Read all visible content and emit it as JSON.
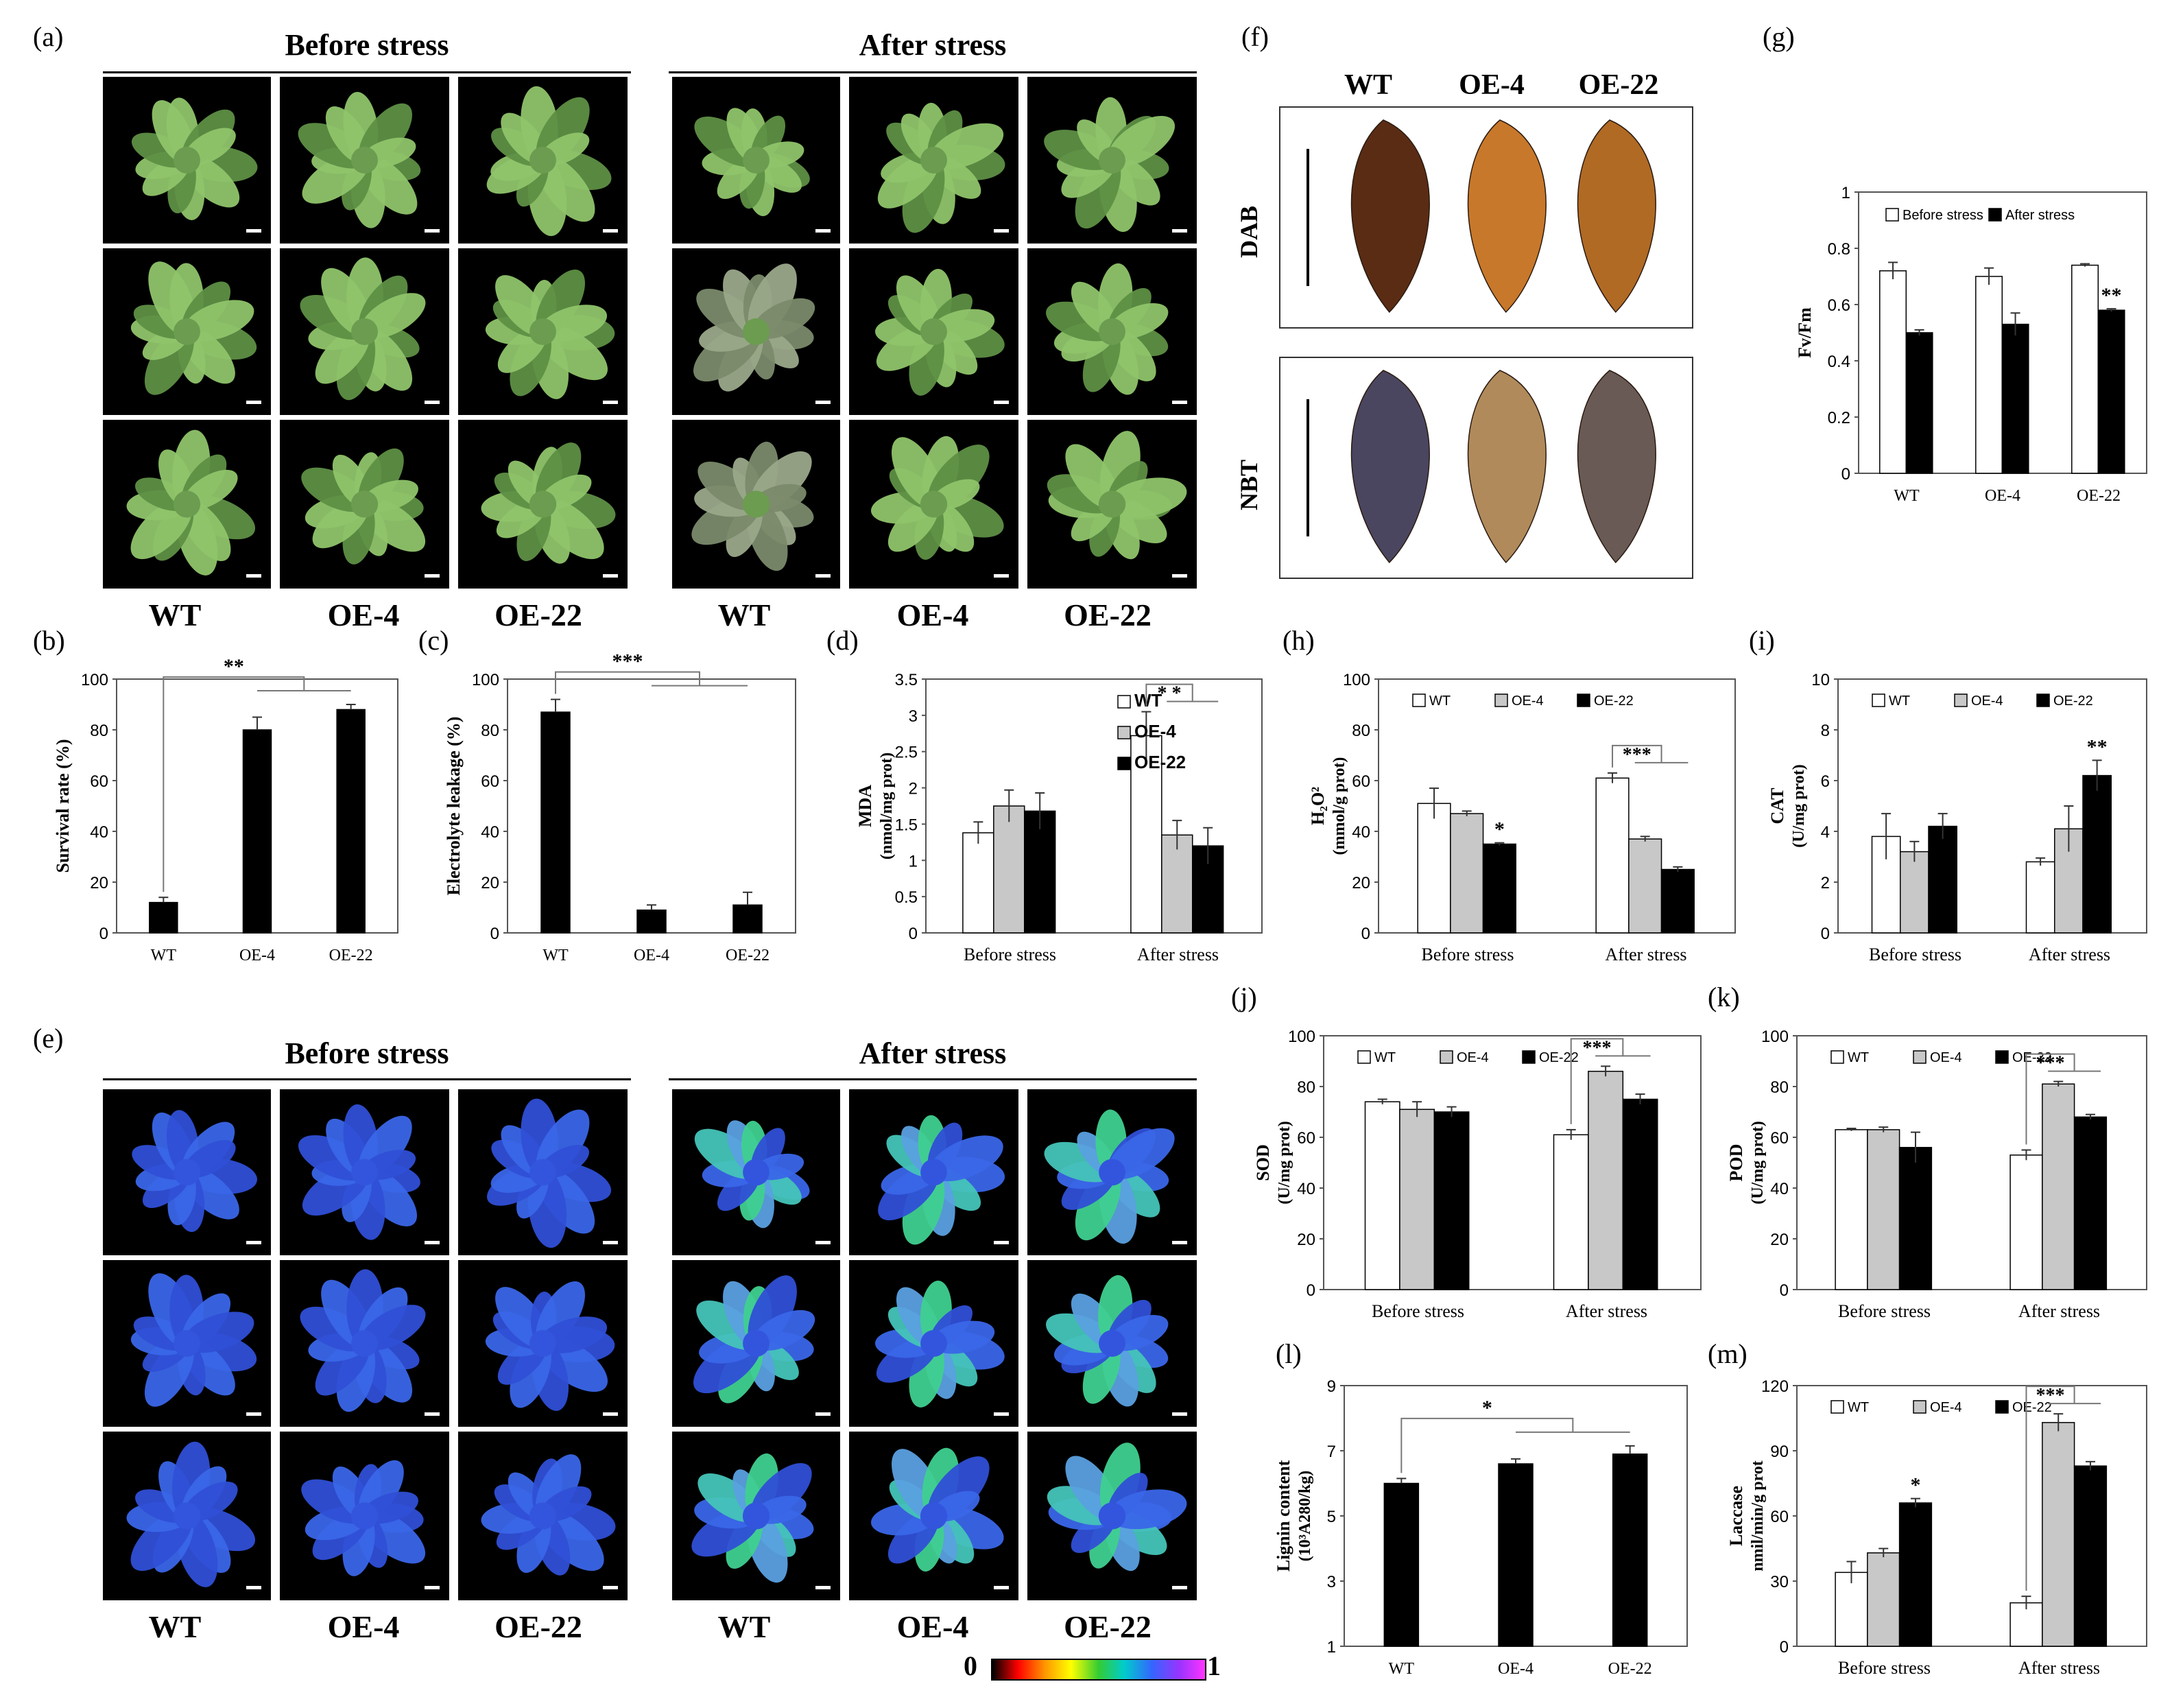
{
  "panel_labels": {
    "a": "(a)",
    "b": "(b)",
    "c": "(c)",
    "d": "(d)",
    "e": "(e)",
    "f": "(f)",
    "g": "(g)",
    "h": "(h)",
    "i": "(i)",
    "j": "(j)",
    "k": "(k)",
    "l": "(l)",
    "m": "(m)"
  },
  "photo_headers": {
    "before": "Before stress",
    "after": "After stress"
  },
  "genotypes": [
    "WT",
    "OE-4",
    "OE-22"
  ],
  "stains": {
    "dab": "DAB",
    "nbt": "NBT"
  },
  "colorbar": {
    "min": "0",
    "max": "1"
  },
  "colors": {
    "leaf_green": "#8fc46a",
    "leaf_dark": "#5e8f45",
    "black": "#000000",
    "gray": "#c8c8c8",
    "white": "#ffffff",
    "dab_brown": "#5a2c14",
    "dab_orange": "#c8782a",
    "nbt_purple": "#4a4660"
  },
  "chart_data": [
    {
      "id": "b",
      "type": "bar",
      "categories": [
        "WT",
        "OE-4",
        "OE-22"
      ],
      "values": [
        12,
        80,
        88
      ],
      "errors": [
        2,
        5,
        2
      ],
      "ylabel": "Survival rate (%)",
      "ylim": [
        0,
        100
      ],
      "yticks": [
        0,
        20,
        40,
        60,
        80,
        100
      ],
      "significance": "**",
      "sig_from": 0,
      "sig_to": [
        1,
        2
      ]
    },
    {
      "id": "c",
      "type": "bar",
      "categories": [
        "WT",
        "OE-4",
        "OE-22"
      ],
      "values": [
        87,
        9,
        11
      ],
      "errors": [
        5,
        2,
        5
      ],
      "ylabel": "Electrolyte leakage (%)",
      "ylim": [
        0,
        100
      ],
      "yticks": [
        0,
        20,
        40,
        60,
        80,
        100
      ],
      "significance": "***",
      "sig_from": 0,
      "sig_to": [
        1,
        2
      ]
    },
    {
      "id": "d",
      "type": "bar",
      "categories": [
        "Before stress",
        "After stress"
      ],
      "series": [
        {
          "name": "WT",
          "values": [
            1.38,
            2.72
          ],
          "errors": [
            0.15,
            0.33
          ]
        },
        {
          "name": "OE-4",
          "values": [
            1.75,
            1.35
          ],
          "errors": [
            0.22,
            0.2
          ]
        },
        {
          "name": "OE-22",
          "values": [
            1.68,
            1.2
          ],
          "errors": [
            0.25,
            0.25
          ]
        }
      ],
      "ylabel": "MDA",
      "ylabel2": "(nmol/mg prot)",
      "ylim": [
        0,
        3.5
      ],
      "yticks": [
        0,
        0.5,
        1,
        1.5,
        2,
        2.5,
        3,
        3.5
      ],
      "legend": "top-right",
      "significance": [
        {
          "group": 1,
          "label": "* *"
        }
      ]
    },
    {
      "id": "g",
      "type": "bar",
      "categories": [
        "WT",
        "OE-4",
        "OE-22"
      ],
      "series": [
        {
          "name": "Before stress",
          "values": [
            0.72,
            0.7,
            0.74
          ],
          "errors": [
            0.03,
            0.03,
            0.005
          ]
        },
        {
          "name": "After stress",
          "values": [
            0.5,
            0.53,
            0.58
          ],
          "errors": [
            0.01,
            0.04,
            0.005
          ]
        }
      ],
      "ylabel": "Fv/Fm",
      "ylim": [
        0,
        1
      ],
      "yticks": [
        0,
        0.2,
        0.4,
        0.6,
        0.8,
        1
      ],
      "legend": "top",
      "significance": [
        {
          "group": 2,
          "series": 1,
          "label": "**"
        }
      ]
    },
    {
      "id": "h",
      "type": "bar",
      "categories": [
        "Before stress",
        "After stress"
      ],
      "series": [
        {
          "name": "WT",
          "values": [
            51,
            61
          ],
          "errors": [
            6,
            2
          ]
        },
        {
          "name": "OE-4",
          "values": [
            47,
            37
          ],
          "errors": [
            1,
            1
          ]
        },
        {
          "name": "OE-22",
          "values": [
            35,
            25
          ],
          "errors": [
            0.5,
            1
          ]
        }
      ],
      "ylabel": "H₂O²",
      "ylabel2": "(mmol/g prot)",
      "ylim": [
        0,
        100
      ],
      "yticks": [
        0,
        20,
        40,
        60,
        80,
        100
      ],
      "legend": "top",
      "significance": [
        {
          "group": 0,
          "series": 2,
          "label": "*"
        },
        {
          "group": 1,
          "label": "***"
        }
      ]
    },
    {
      "id": "i",
      "type": "bar",
      "categories": [
        "Before stress",
        "After stress"
      ],
      "series": [
        {
          "name": "WT",
          "values": [
            3.8,
            2.8
          ],
          "errors": [
            0.9,
            0.15
          ]
        },
        {
          "name": "OE-4",
          "values": [
            3.2,
            4.1
          ],
          "errors": [
            0.4,
            0.9
          ]
        },
        {
          "name": "OE-22",
          "values": [
            4.2,
            6.2
          ],
          "errors": [
            0.5,
            0.6
          ]
        }
      ],
      "ylabel": "CAT",
      "ylabel2": "(U/mg prot)",
      "ylim": [
        0,
        10
      ],
      "yticks": [
        0,
        2,
        4,
        6,
        8,
        10
      ],
      "legend": "top",
      "significance": [
        {
          "group": 1,
          "series": 2,
          "label": "**"
        }
      ]
    },
    {
      "id": "j",
      "type": "bar",
      "categories": [
        "Before stress",
        "After stress"
      ],
      "series": [
        {
          "name": "WT",
          "values": [
            74,
            61
          ],
          "errors": [
            1,
            2
          ]
        },
        {
          "name": "OE-4",
          "values": [
            71,
            86
          ],
          "errors": [
            3,
            2
          ]
        },
        {
          "name": "OE-22",
          "values": [
            70,
            75
          ],
          "errors": [
            2,
            2
          ]
        }
      ],
      "ylabel": "SOD",
      "ylabel2": "(U/mg prot)",
      "ylim": [
        0,
        100
      ],
      "yticks": [
        0,
        20,
        40,
        60,
        80,
        100
      ],
      "legend": "top",
      "significance": [
        {
          "group": 1,
          "label": "***"
        }
      ]
    },
    {
      "id": "k",
      "type": "bar",
      "categories": [
        "Before stress",
        "After stress"
      ],
      "series": [
        {
          "name": "WT",
          "values": [
            63,
            53
          ],
          "errors": [
            0.5,
            2
          ]
        },
        {
          "name": "OE-4",
          "values": [
            63,
            81
          ],
          "errors": [
            1,
            1
          ]
        },
        {
          "name": "OE-22",
          "values": [
            56,
            68
          ],
          "errors": [
            6,
            1
          ]
        }
      ],
      "ylabel": "POD",
      "ylabel2": "(U/mg prot)",
      "ylim": [
        0,
        100
      ],
      "yticks": [
        0,
        20,
        40,
        60,
        80,
        100
      ],
      "legend": "top",
      "significance": [
        {
          "group": 1,
          "label": "***"
        }
      ]
    },
    {
      "id": "l",
      "type": "bar",
      "categories": [
        "WT",
        "OE-4",
        "OE-22"
      ],
      "values": [
        6.0,
        6.6,
        6.9
      ],
      "errors": [
        0.15,
        0.15,
        0.25
      ],
      "ylabel": "Lignin content",
      "ylabel2": "(10³A280/kg)",
      "ylim": [
        1,
        9
      ],
      "yticks": [
        1,
        3,
        5,
        7,
        9
      ],
      "significance": "*",
      "sig_from": 0,
      "sig_to": [
        1,
        2
      ]
    },
    {
      "id": "m",
      "type": "bar",
      "categories": [
        "Before stress",
        "After stress"
      ],
      "series": [
        {
          "name": "WT",
          "values": [
            34,
            20
          ],
          "errors": [
            5,
            3
          ]
        },
        {
          "name": "OE-4",
          "values": [
            43,
            103
          ],
          "errors": [
            2,
            4
          ]
        },
        {
          "name": "OE-22",
          "values": [
            66,
            83
          ],
          "errors": [
            2,
            2
          ]
        }
      ],
      "ylabel": "Laccase",
      "ylabel2": "nmil/min/g prot",
      "ylim": [
        0,
        120
      ],
      "yticks": [
        0,
        30,
        60,
        90,
        120
      ],
      "legend": "top",
      "significance": [
        {
          "group": 0,
          "series": 2,
          "label": "*"
        },
        {
          "group": 1,
          "label": "***"
        }
      ]
    }
  ]
}
